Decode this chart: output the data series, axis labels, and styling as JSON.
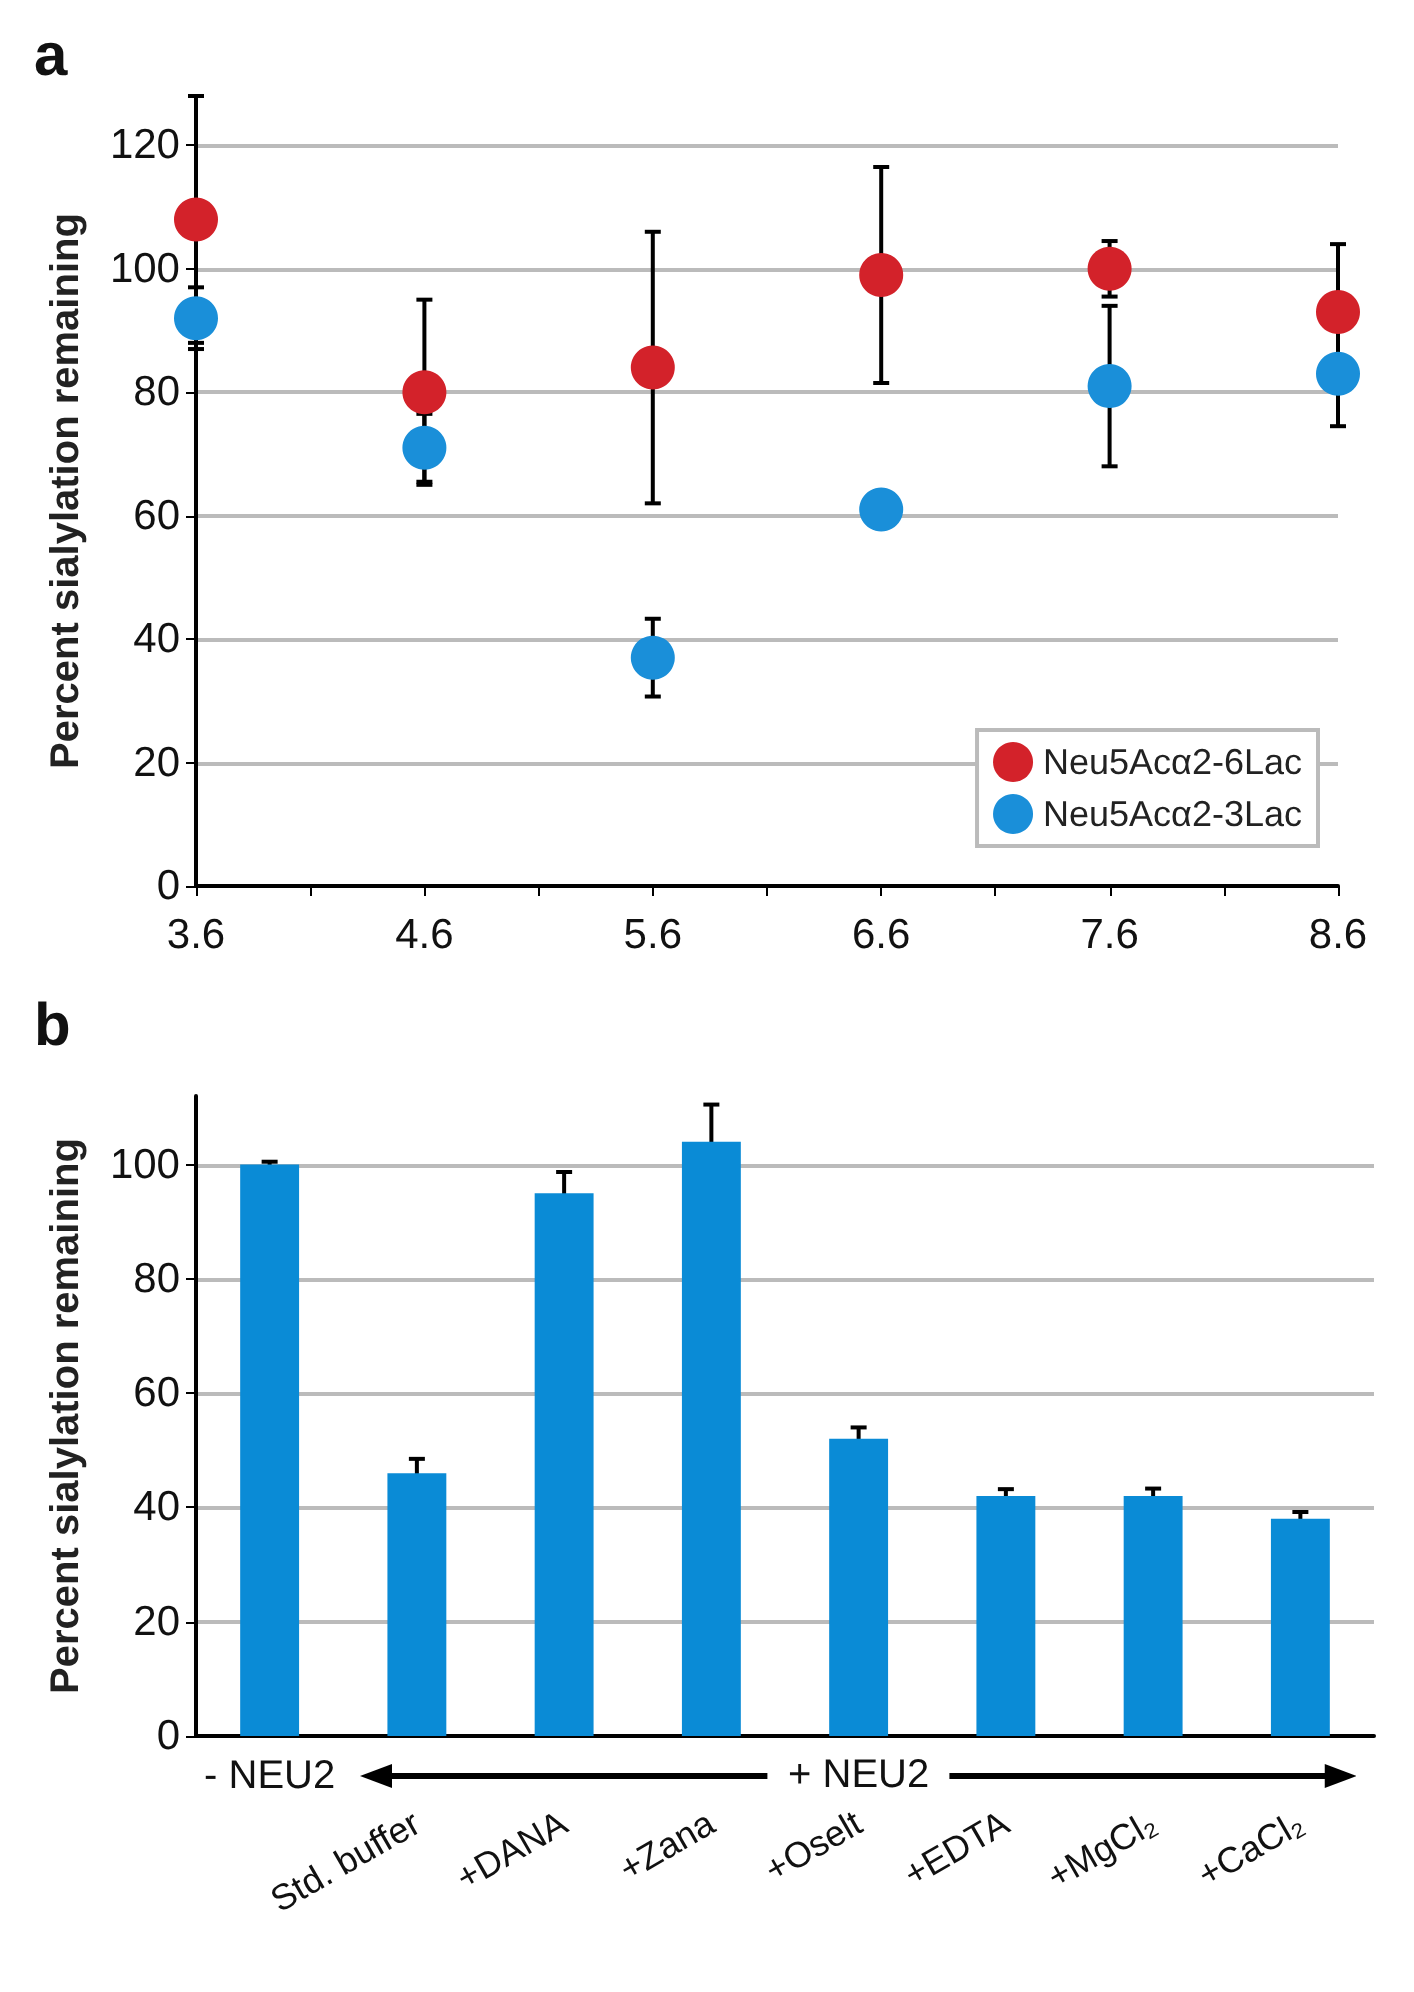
{
  "chart_data": [
    {
      "type": "scatter",
      "title": "a",
      "ylabel": "Percent sialylation remaining",
      "x": [
        3.6,
        4.6,
        5.6,
        6.6,
        7.6,
        8.6
      ],
      "xlim": [
        3.6,
        8.6
      ],
      "xticks": [
        3.6,
        {
          "value": 4.1,
          "label": null
        },
        4.6,
        {
          "value": 5.1,
          "label": null
        },
        5.6,
        {
          "value": 6.1,
          "label": null
        },
        6.6,
        {
          "value": 7.1,
          "label": null
        },
        7.6,
        {
          "value": 8.1,
          "label": null
        },
        8.6
      ],
      "ylim": [
        0,
        128
      ],
      "yticks": [
        0,
        20,
        40,
        60,
        80,
        100,
        120
      ],
      "grid": "y",
      "legend": "bottom right",
      "marker": "circle",
      "series": [
        {
          "name": "Neu5Acα2-6Lac",
          "color": "#d3222a",
          "values": [
            108,
            80,
            84,
            99,
            100,
            93
          ],
          "errors": [
            20,
            15,
            22,
            17.5,
            4.5,
            11
          ]
        },
        {
          "name": "Neu5Acα2-3Lac",
          "color": "#1a8fd9",
          "values": [
            92,
            71,
            37,
            61,
            81,
            83
          ],
          "errors": [
            5,
            5.5,
            6.3,
            null,
            13,
            8.5
          ]
        }
      ]
    },
    {
      "type": "bar",
      "title": "b",
      "ylabel": "Percent sialylation remaining",
      "categories": [
        null,
        "Std. buffer",
        "+DANA",
        "+Zana",
        "+Oselt",
        "+EDTA",
        "+MgCl₂",
        "+CaCl₂"
      ],
      "ylim": [
        0,
        112
      ],
      "yticks": [
        0,
        20,
        40,
        60,
        80,
        100
      ],
      "grid": "y",
      "legend": false,
      "series": [
        {
          "color": "#0a8bd6",
          "values": [
            100,
            46,
            95,
            104,
            52,
            42,
            42,
            38
          ],
          "errors": [
            0.5,
            2.5,
            3.7,
            6.5,
            2,
            1.2,
            1.3,
            1.2
          ]
        }
      ],
      "annotations": [
        "- NEU2",
        "+ NEU2"
      ]
    }
  ]
}
